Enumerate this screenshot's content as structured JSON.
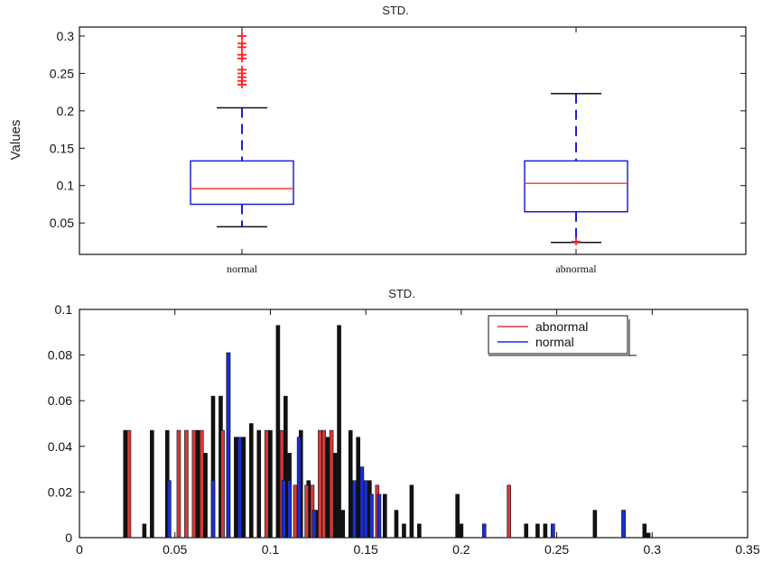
{
  "chart_data": [
    {
      "type": "box",
      "title": "STD.",
      "xlabel": "",
      "ylabel": "Values",
      "ylim": [
        0.008,
        0.312
      ],
      "yticks": [
        0.05,
        0.1,
        0.15,
        0.2,
        0.25,
        0.3
      ],
      "ytick_labels": [
        "0.05",
        "0.1",
        "0.15",
        "0.2",
        "0.25",
        "0.3"
      ],
      "categories": [
        "normal",
        "abnormal"
      ],
      "boxes": [
        {
          "label": "normal",
          "whisker_low": 0.045,
          "q1": 0.075,
          "median": 0.096,
          "q3": 0.133,
          "whisker_high": 0.204,
          "outliers": [
            0.235,
            0.24,
            0.245,
            0.25,
            0.255,
            0.27,
            0.275,
            0.285,
            0.29,
            0.3
          ]
        },
        {
          "label": "abnormal",
          "whisker_low": 0.024,
          "q1": 0.065,
          "median": 0.103,
          "q3": 0.133,
          "whisker_high": 0.223,
          "outliers": [
            0.025
          ]
        }
      ],
      "colors": {
        "box": "#1f1fd6",
        "median": "#ff4444",
        "outlier": "#ff2020"
      }
    },
    {
      "type": "bar",
      "title": "STD.",
      "xlabel": "",
      "ylabel": "",
      "xlim": [
        0,
        0.35
      ],
      "ylim": [
        0,
        0.1
      ],
      "xticks": [
        0,
        0.05,
        0.1,
        0.15,
        0.2,
        0.25,
        0.3,
        0.35
      ],
      "xtick_labels": [
        "0",
        "0.05",
        "0.1",
        "0.15",
        "0.2",
        "0.25",
        "0.3",
        "0.35"
      ],
      "yticks": [
        0,
        0.02,
        0.04,
        0.06,
        0.08,
        0.1
      ],
      "ytick_labels": [
        "0",
        "0.02",
        "0.04",
        "0.06",
        "0.08",
        "0.1"
      ],
      "legend": {
        "position": "top-right",
        "entries": [
          "abnormal",
          "normal"
        ]
      },
      "series": [
        {
          "name": "abnormal",
          "color": "#d23a3a",
          "x": [
            0.026,
            0.052,
            0.056,
            0.06,
            0.064,
            0.075,
            0.098,
            0.106,
            0.113,
            0.119,
            0.122,
            0.126,
            0.128,
            0.132,
            0.156,
            0.225,
            0.285
          ],
          "values": [
            0.047,
            0.047,
            0.047,
            0.047,
            0.047,
            0.047,
            0.047,
            0.047,
            0.023,
            0.023,
            0.023,
            0.047,
            0.047,
            0.047,
            0.023,
            0.023,
            0.012
          ]
        },
        {
          "name": "normal",
          "color": "#1a2ed8",
          "x": [
            0.047,
            0.07,
            0.078,
            0.084,
            0.107,
            0.11,
            0.115,
            0.123,
            0.144,
            0.148,
            0.15,
            0.153,
            0.157,
            0.212,
            0.248,
            0.285
          ],
          "values": [
            0.025,
            0.025,
            0.081,
            0.044,
            0.025,
            0.025,
            0.044,
            0.012,
            0.025,
            0.031,
            0.025,
            0.019,
            0.019,
            0.006,
            0.006,
            0.012
          ]
        },
        {
          "name": "",
          "color": "#111111",
          "x": [
            0.024,
            0.034,
            0.038,
            0.046,
            0.062,
            0.066,
            0.07,
            0.074,
            0.078,
            0.082,
            0.086,
            0.09,
            0.094,
            0.1,
            0.104,
            0.108,
            0.11,
            0.116,
            0.12,
            0.124,
            0.13,
            0.134,
            0.136,
            0.138,
            0.142,
            0.146,
            0.152,
            0.16,
            0.166,
            0.17,
            0.174,
            0.178,
            0.198,
            0.2,
            0.234,
            0.24,
            0.244,
            0.27,
            0.296,
            0.298
          ],
          "values": [
            0.047,
            0.006,
            0.047,
            0.047,
            0.047,
            0.037,
            0.062,
            0.062,
            0.081,
            0.044,
            0.044,
            0.05,
            0.047,
            0.047,
            0.093,
            0.062,
            0.037,
            0.047,
            0.025,
            0.012,
            0.044,
            0.037,
            0.093,
            0.012,
            0.047,
            0.044,
            0.025,
            0.019,
            0.012,
            0.006,
            0.023,
            0.006,
            0.019,
            0.006,
            0.006,
            0.006,
            0.006,
            0.012,
            0.006,
            0.002
          ]
        }
      ]
    }
  ]
}
